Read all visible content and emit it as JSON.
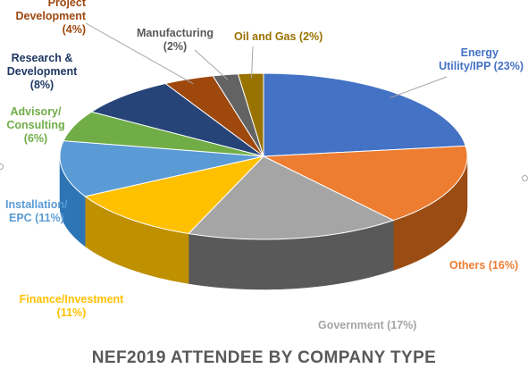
{
  "chart_data": {
    "type": "pie",
    "title": "NEF2019 ATTENDEE BY COMPANY TYPE",
    "slices": [
      {
        "name": "Energy Utility/IPP",
        "value": 23,
        "label_lines": [
          "Energy",
          "Utility/IPP (23%)"
        ],
        "color": "#4472c4",
        "side": "#2f528f"
      },
      {
        "name": "Others",
        "value": 16,
        "label_lines": [
          "Others (16%)"
        ],
        "color": "#ed7d31",
        "side": "#9a4c12"
      },
      {
        "name": "Government",
        "value": 17,
        "label_lines": [
          "Government (17%)"
        ],
        "color": "#a5a5a5",
        "side": "#595959"
      },
      {
        "name": "Finance/Investment",
        "value": 11,
        "label_lines": [
          "Finance/Investment",
          "(11%)"
        ],
        "color": "#ffc000",
        "side": "#bf9000"
      },
      {
        "name": "Installation/EPC",
        "value": 11,
        "label_lines": [
          "Installation/",
          "EPC (11%)"
        ],
        "color": "#5b9bd5",
        "side": "#2e75b6"
      },
      {
        "name": "Advisory/Consulting",
        "value": 6,
        "label_lines": [
          "Advisory/",
          "Consulting",
          "(6%)"
        ],
        "color": "#70ad47",
        "side": "#507e32"
      },
      {
        "name": "Research & Development",
        "value": 8,
        "label_lines": [
          "Research &",
          "Development",
          "(8%)"
        ],
        "color": "#264478",
        "side": "#172b4d"
      },
      {
        "name": "Project Development",
        "value": 4,
        "label_lines": [
          "Project",
          "Development",
          "(4%)"
        ],
        "color": "#9e480e",
        "side": "#6a300a"
      },
      {
        "name": "Manufacturing",
        "value": 2,
        "label_lines": [
          "Manufacturing",
          "(2%)"
        ],
        "color": "#636363",
        "side": "#3f3f3f"
      },
      {
        "name": "Oil and Gas",
        "value": 2,
        "label_lines": [
          "Oil and Gas (2%)"
        ],
        "color": "#997300",
        "side": "#664d00"
      }
    ],
    "legend": "none",
    "data_labels": "outside with leader lines"
  }
}
